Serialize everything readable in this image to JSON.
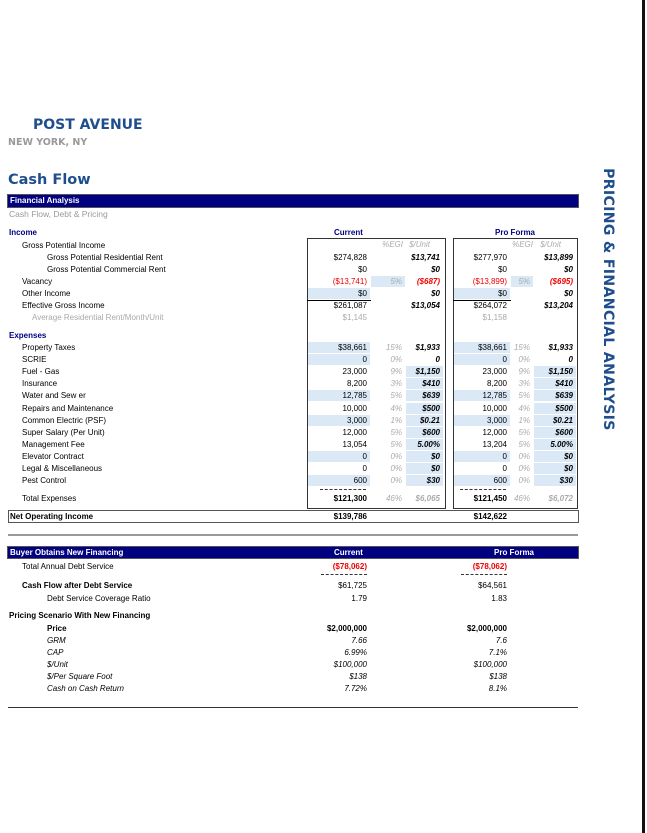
{
  "header": {
    "property": "POST AVENUE",
    "location": "NEW YORK, NY",
    "page_title": "Cash Flow",
    "side_title": "PRICING & FINANCIAL ANALYSIS"
  },
  "analysis": {
    "bar_title": "Financial Analysis",
    "subtitle": "Cash Flow, Debt & Pricing",
    "income_label": "Income",
    "expenses_label": "Expenses",
    "current_label": "Current",
    "proforma_label": "Pro Forma",
    "pct_egi_label": "%EGI",
    "per_unit_label": "$/Unit",
    "highlight_color": "#dbe9f7",
    "income_rows": [
      {
        "label": "Gross Potential Income",
        "indent": 1,
        "cur": {
          "v": "",
          "p": "",
          "u": ""
        },
        "pf": {
          "v": "",
          "p": "",
          "u": ""
        }
      },
      {
        "label": "Gross Potential Residential Rent",
        "indent": 2,
        "cur": {
          "v": "$274,828",
          "p": "",
          "u": "$13,741"
        },
        "pf": {
          "v": "$277,970",
          "p": "",
          "u": "$13,899"
        }
      },
      {
        "label": "Gross Potential Commercial Rent",
        "indent": 2,
        "cur": {
          "v": "$0",
          "p": "",
          "u": "$0"
        },
        "pf": {
          "v": "$0",
          "p": "",
          "u": "$0"
        }
      },
      {
        "label": "Vacancy",
        "indent": 1,
        "red": true,
        "hl": [
          "p"
        ],
        "cur": {
          "v": "($13,741)",
          "p": "5%",
          "u": "($687)"
        },
        "pf": {
          "v": "($13,899)",
          "p": "5%",
          "u": "($695)"
        }
      },
      {
        "label": "Other Income",
        "indent": 1,
        "hl": [
          "v"
        ],
        "underline": true,
        "cur": {
          "v": "$0",
          "p": "",
          "u": "$0"
        },
        "pf": {
          "v": "$0",
          "p": "",
          "u": "$0"
        }
      },
      {
        "label": "Effective Gross Income",
        "indent": 1,
        "cur": {
          "v": "$261,087",
          "p": "",
          "u": "$13,054"
        },
        "pf": {
          "v": "$264,072",
          "p": "",
          "u": "$13,204"
        }
      },
      {
        "label": "Average Residential Rent/Month/Unit",
        "indent": 3,
        "gray": true,
        "cur": {
          "v": "$1,145",
          "p": "",
          "u": ""
        },
        "pf": {
          "v": "$1,158",
          "p": "",
          "u": ""
        }
      }
    ],
    "expense_rows": [
      {
        "label": "Property Taxes",
        "hl": [
          "v"
        ],
        "cur": {
          "v": "$38,661",
          "p": "15%",
          "u": "$1,933"
        },
        "pf": {
          "v": "$38,661",
          "p": "15%",
          "u": "$1,933"
        }
      },
      {
        "label": "SCRIE",
        "hl": [
          "v"
        ],
        "cur": {
          "v": "0",
          "p": "0%",
          "u": "0"
        },
        "pf": {
          "v": "0",
          "p": "0%",
          "u": "0"
        }
      },
      {
        "label": "Fuel -  Gas",
        "hl": [
          "u"
        ],
        "cur": {
          "v": "23,000",
          "p": "9%",
          "u": "$1,150"
        },
        "pf": {
          "v": "23,000",
          "p": "9%",
          "u": "$1,150"
        }
      },
      {
        "label": "Insurance",
        "hl": [
          "u"
        ],
        "cur": {
          "v": "8,200",
          "p": "3%",
          "u": "$410"
        },
        "pf": {
          "v": "8,200",
          "p": "3%",
          "u": "$410"
        }
      },
      {
        "label": "Water and Sew er",
        "hl": [
          "v",
          "u"
        ],
        "cur": {
          "v": "12,785",
          "p": "5%",
          "u": "$639"
        },
        "pf": {
          "v": "12,785",
          "p": "5%",
          "u": "$639"
        }
      },
      {
        "label": "Repairs and Maintenance",
        "hl": [
          "u"
        ],
        "cur": {
          "v": "10,000",
          "p": "4%",
          "u": "$500"
        },
        "pf": {
          "v": "10,000",
          "p": "4%",
          "u": "$500"
        }
      },
      {
        "label": "Common Electric (PSF)",
        "hl": [
          "v",
          "u"
        ],
        "cur": {
          "v": "3,000",
          "p": "1%",
          "u": "$0.21"
        },
        "pf": {
          "v": "3,000",
          "p": "1%",
          "u": "$0.21"
        }
      },
      {
        "label": "Super Salary (Per Unit)",
        "hl": [
          "u"
        ],
        "cur": {
          "v": "12,000",
          "p": "5%",
          "u": "$600"
        },
        "pf": {
          "v": "12,000",
          "p": "5%",
          "u": "$600"
        }
      },
      {
        "label": "Management Fee",
        "hl": [
          "u"
        ],
        "cur": {
          "v": "13,054",
          "p": "5%",
          "u": "5.00%"
        },
        "pf": {
          "v": "13,204",
          "p": "5%",
          "u": "5.00%"
        }
      },
      {
        "label": "Elevator Contract",
        "hl": [
          "v",
          "u"
        ],
        "cur": {
          "v": "0",
          "p": "0%",
          "u": "$0"
        },
        "pf": {
          "v": "0",
          "p": "0%",
          "u": "$0"
        }
      },
      {
        "label": "Legal & Miscellaneous",
        "hl": [
          "u"
        ],
        "cur": {
          "v": "0",
          "p": "0%",
          "u": "$0"
        },
        "pf": {
          "v": "0",
          "p": "0%",
          "u": "$0"
        }
      },
      {
        "label": "Pest Control",
        "hl": [
          "v",
          "u"
        ],
        "cur": {
          "v": "600",
          "p": "0%",
          "u": "$30"
        },
        "pf": {
          "v": "600",
          "p": "0%",
          "u": "$30"
        }
      }
    ],
    "total_expenses": {
      "label": "Total Expenses",
      "cur": {
        "v": "$121,300",
        "p": "46%",
        "u": "$6,065"
      },
      "pf": {
        "v": "$121,450",
        "p": "46%",
        "u": "$6,072"
      }
    },
    "noi": {
      "label": "Net Operating Income",
      "cur": "$139,786",
      "pf": "$142,622"
    }
  },
  "financing": {
    "bar_title": "Buyer Obtains New Financing",
    "current_label": "Current",
    "proforma_label": "Pro Forma",
    "rows": [
      {
        "label": "Total Annual Debt Service",
        "style": "red",
        "cur": "($78,062)",
        "pf": "($78,062)"
      },
      {
        "label": "Cash Flow after Debt Service",
        "style": "boldlabel",
        "cur": "$61,725",
        "pf": "$64,561"
      },
      {
        "label": "Debt Service Coverage Ratio",
        "style": "indent2",
        "cur": "1.79",
        "pf": "1.83"
      },
      {
        "label": "Pricing Scenario With New Financing",
        "style": "section",
        "cur": "",
        "pf": ""
      },
      {
        "label": "Price",
        "style": "bold",
        "cur": "$2,000,000",
        "pf": "$2,000,000"
      },
      {
        "label": "GRM",
        "style": "italic",
        "cur": "7.66",
        "pf": "7.6"
      },
      {
        "label": "CAP",
        "style": "italic",
        "cur": "6.99%",
        "pf": "7.1%"
      },
      {
        "label": "$/Unit",
        "style": "italic",
        "cur": "$100,000",
        "pf": "$100,000"
      },
      {
        "label": "$/Per Square Foot",
        "style": "italic",
        "cur": "$138",
        "pf": "$138"
      },
      {
        "label": "Cash on Cash Return",
        "style": "italic",
        "cur": "7.72%",
        "pf": "8.1%"
      }
    ]
  }
}
